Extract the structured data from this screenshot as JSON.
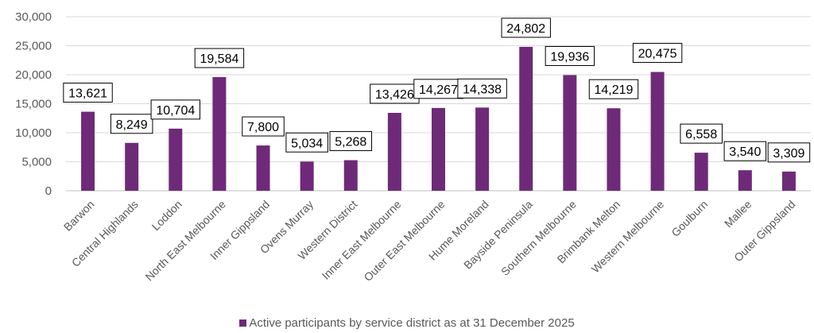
{
  "chart_data": {
    "type": "bar",
    "categories": [
      "Barwon",
      "Central Highlands",
      "Loddon",
      "North East Melbourne",
      "Inner Gippsland",
      "Ovens Murray",
      "Western District",
      "Inner East Melbourne",
      "Outer East Melbourne",
      "Hume Moreland",
      "Bayside Peninsula",
      "Southern Melbourne",
      "Brimbank Melton",
      "Western Melbourne",
      "Goulburn",
      "Mallee",
      "Outer Gippsland"
    ],
    "series": [
      {
        "name": "Active participants by service district as at 31 December 2025",
        "values": [
          13621,
          8249,
          10704,
          19584,
          7800,
          5034,
          5268,
          13426,
          14267,
          14338,
          24802,
          19936,
          14219,
          20475,
          6558,
          3540,
          3309
        ],
        "labels": [
          "13,621",
          "8,249",
          "10,704",
          "19,584",
          "7,800",
          "5,034",
          "5,268",
          "13,426",
          "14,267",
          "14,338",
          "24,802",
          "19,936",
          "14,219",
          "20,475",
          "6,558",
          "3,540",
          "3,309"
        ]
      }
    ],
    "yticks": [
      "0",
      "5,000",
      "10,000",
      "15,000",
      "20,000",
      "25,000",
      "30,000"
    ],
    "ylim": [
      0,
      30000
    ],
    "grid": true,
    "legend": "bottom",
    "color": "#6E2A78"
  }
}
